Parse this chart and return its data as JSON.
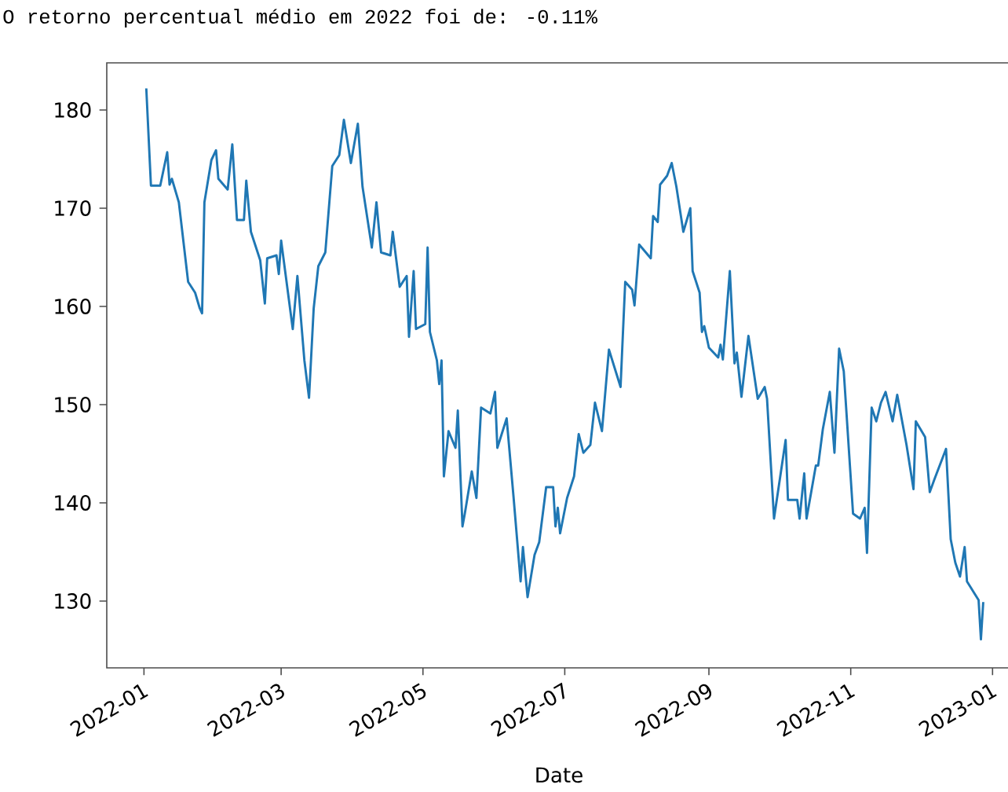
{
  "chart_data": {
    "type": "line",
    "title": "O retorno percentual médio em 2022 foi de: -0.11%",
    "xlabel": "Date",
    "xlim": [
      "2021-12-16",
      "2023-01-09"
    ],
    "ylim": [
      123.2,
      184.8
    ],
    "xticks": [
      "2022-01",
      "2022-03",
      "2022-05",
      "2022-07",
      "2022-09",
      "2022-11",
      "2023-01"
    ],
    "yticks": [
      130,
      140,
      150,
      160,
      170,
      180
    ],
    "series": [
      {
        "color": "#1f77b4",
        "x": [
          "2022-01-02",
          "2022-01-04",
          "2022-01-08",
          "2022-01-11",
          "2022-01-12",
          "2022-01-13",
          "2022-01-16",
          "2022-01-20",
          "2022-01-23",
          "2022-01-25",
          "2022-01-26",
          "2022-01-27",
          "2022-01-30",
          "2022-02-01",
          "2022-02-02",
          "2022-02-06",
          "2022-02-08",
          "2022-02-10",
          "2022-02-13",
          "2022-02-14",
          "2022-02-16",
          "2022-02-20",
          "2022-02-22",
          "2022-02-23",
          "2022-02-27",
          "2022-02-28",
          "2022-03-01",
          "2022-03-06",
          "2022-03-08",
          "2022-03-11",
          "2022-03-13",
          "2022-03-15",
          "2022-03-17",
          "2022-03-20",
          "2022-03-23",
          "2022-03-26",
          "2022-03-28",
          "2022-03-31",
          "2022-04-03",
          "2022-04-05",
          "2022-04-09",
          "2022-04-11",
          "2022-04-13",
          "2022-04-17",
          "2022-04-18",
          "2022-04-21",
          "2022-04-24",
          "2022-04-25",
          "2022-04-27",
          "2022-04-28",
          "2022-05-02",
          "2022-05-03",
          "2022-05-04",
          "2022-05-07",
          "2022-05-08",
          "2022-05-09",
          "2022-05-10",
          "2022-05-12",
          "2022-05-15",
          "2022-05-16",
          "2022-05-18",
          "2022-05-19",
          "2022-05-22",
          "2022-05-24",
          "2022-05-26",
          "2022-05-30",
          "2022-06-01",
          "2022-06-02",
          "2022-06-06",
          "2022-06-09",
          "2022-06-12",
          "2022-06-13",
          "2022-06-15",
          "2022-06-18",
          "2022-06-20",
          "2022-06-23",
          "2022-06-26",
          "2022-06-27",
          "2022-06-28",
          "2022-06-29",
          "2022-07-02",
          "2022-07-05",
          "2022-07-07",
          "2022-07-09",
          "2022-07-12",
          "2022-07-14",
          "2022-07-17",
          "2022-07-20",
          "2022-07-25",
          "2022-07-26",
          "2022-07-27",
          "2022-07-30",
          "2022-07-31",
          "2022-08-02",
          "2022-08-07",
          "2022-08-08",
          "2022-08-10",
          "2022-08-11",
          "2022-08-14",
          "2022-08-16",
          "2022-08-18",
          "2022-08-21",
          "2022-08-24",
          "2022-08-25",
          "2022-08-28",
          "2022-08-29",
          "2022-08-30",
          "2022-09-01",
          "2022-09-05",
          "2022-09-06",
          "2022-09-07",
          "2022-09-10",
          "2022-09-12",
          "2022-09-13",
          "2022-09-15",
          "2022-09-18",
          "2022-09-22",
          "2022-09-25",
          "2022-09-26",
          "2022-09-29",
          "2022-10-04",
          "2022-10-05",
          "2022-10-09",
          "2022-10-10",
          "2022-10-12",
          "2022-10-13",
          "2022-10-17",
          "2022-10-18",
          "2022-10-20",
          "2022-10-23",
          "2022-10-25",
          "2022-10-27",
          "2022-10-29",
          "2022-11-02",
          "2022-11-05",
          "2022-11-07",
          "2022-11-08",
          "2022-11-10",
          "2022-11-12",
          "2022-11-14",
          "2022-11-16",
          "2022-11-19",
          "2022-11-21",
          "2022-11-25",
          "2022-11-28",
          "2022-11-29",
          "2022-12-03",
          "2022-12-05",
          "2022-12-07",
          "2022-12-12",
          "2022-12-14",
          "2022-12-16",
          "2022-12-18",
          "2022-12-20",
          "2022-12-21",
          "2022-12-26",
          "2022-12-27",
          "2022-12-28"
        ],
        "values": [
          182.2,
          172.3,
          172.3,
          175.7,
          172.4,
          173.0,
          170.6,
          162.5,
          161.4,
          159.8,
          159.3,
          170.6,
          174.9,
          175.9,
          173.0,
          171.9,
          176.5,
          168.8,
          168.8,
          172.8,
          167.6,
          164.7,
          160.3,
          164.9,
          165.2,
          163.3,
          166.7,
          157.7,
          163.1,
          154.5,
          150.7,
          159.8,
          164.1,
          165.5,
          174.3,
          175.4,
          179.0,
          174.6,
          178.6,
          172.2,
          166.0,
          170.6,
          165.5,
          165.2,
          167.6,
          162.0,
          163.1,
          156.9,
          163.6,
          157.7,
          158.2,
          166.0,
          157.4,
          154.5,
          152.1,
          154.5,
          142.7,
          147.3,
          145.6,
          149.4,
          137.6,
          138.9,
          143.2,
          140.5,
          149.7,
          149.1,
          151.3,
          145.6,
          148.6,
          140.5,
          132.0,
          135.5,
          130.4,
          134.7,
          136.0,
          141.6,
          141.6,
          137.6,
          139.5,
          136.9,
          140.5,
          142.7,
          147.0,
          145.1,
          145.9,
          150.2,
          147.3,
          155.6,
          151.8,
          157.2,
          162.5,
          161.7,
          160.1,
          166.3,
          164.9,
          169.2,
          168.6,
          172.4,
          173.3,
          174.6,
          172.2,
          167.6,
          170.0,
          163.6,
          161.4,
          157.4,
          158.0,
          155.8,
          154.8,
          156.1,
          154.6,
          163.6,
          154.2,
          155.3,
          150.8,
          157.0,
          150.6,
          151.8,
          150.6,
          138.4,
          146.4,
          140.3,
          140.3,
          138.4,
          143.0,
          138.4,
          143.8,
          143.8,
          147.5,
          151.3,
          145.1,
          155.7,
          153.4,
          138.9,
          138.4,
          139.5,
          134.9,
          149.7,
          148.3,
          150.2,
          151.3,
          148.3,
          151.0,
          145.9,
          141.4,
          148.3,
          146.7,
          141.1,
          142.4,
          145.5,
          136.3,
          133.9,
          132.5,
          135.5,
          132.0,
          130.1,
          126.1,
          129.9
        ]
      }
    ]
  }
}
